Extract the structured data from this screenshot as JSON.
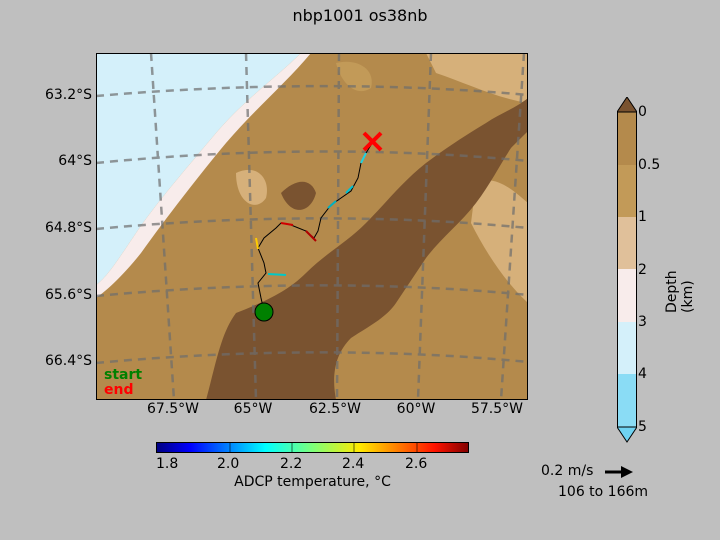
{
  "title": "nbp1001 os38nb",
  "map": {
    "lat_labels": [
      "63.2°S",
      "64°S",
      "64.8°S",
      "65.6°S",
      "66.4°S"
    ],
    "lon_labels": [
      "67.5°W",
      "65°W",
      "62.5°W",
      "60°W",
      "57.5°W"
    ],
    "legend": {
      "start": "start",
      "end": "end"
    },
    "colors": {
      "land": "#d4f0fa",
      "ice": "#f8eceb",
      "shelf": "#b48a4c",
      "mid": "#c29a58",
      "shallow": "#d6b07a",
      "deep": "#7a5330",
      "start_marker": "#008000",
      "end_marker": "#ff0000"
    }
  },
  "depth_colorbar": {
    "label": "Depth (km)",
    "ticks": [
      "0",
      "0.5",
      "1",
      "2",
      "3",
      "4",
      "5"
    ],
    "colors": [
      "#7a5330",
      "#b48a4c",
      "#c29a58",
      "#e0c09a",
      "#f8eceb",
      "#d4f0fa",
      "#8adcf5",
      "#6fd3f2"
    ]
  },
  "temp_colorbar": {
    "label": "ADCP temperature, °C",
    "ticks": [
      "1.8",
      "2.0",
      "2.2",
      "2.4",
      "2.6"
    ]
  },
  "velocity_key": {
    "label": "0.2 m/s",
    "range": "106 to 166m"
  }
}
